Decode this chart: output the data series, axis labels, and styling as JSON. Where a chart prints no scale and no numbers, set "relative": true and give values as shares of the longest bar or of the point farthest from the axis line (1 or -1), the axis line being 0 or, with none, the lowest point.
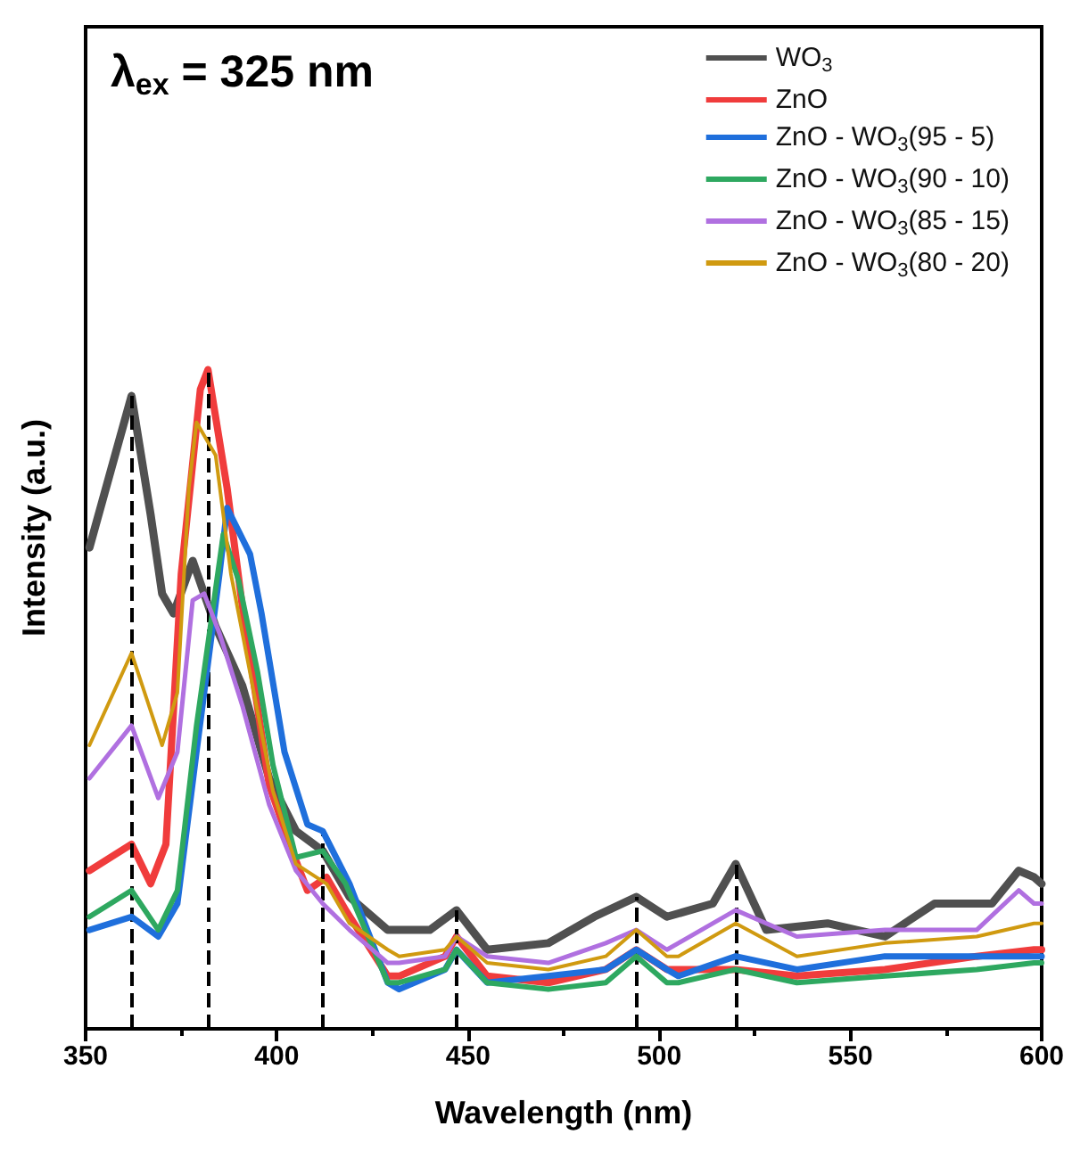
{
  "chart_data": {
    "type": "line",
    "relative": true,
    "xlabel": "Wavelength (nm)",
    "ylabel": "Intensity (a.u.)",
    "annotations": [
      "λ$_{ex}$ = 325 nm"
    ],
    "xlim": [
      350,
      600
    ],
    "xticks": [
      350,
      400,
      450,
      500,
      550,
      600
    ],
    "grid": false,
    "legend": "top right",
    "marker": "none",
    "line_style": "solid",
    "ref_lines": [
      {
        "axis": "x",
        "value": 362,
        "color": "#000000",
        "line_style": "dashed"
      },
      {
        "axis": "x",
        "value": 382,
        "color": "#000000",
        "line_style": "dashed"
      },
      {
        "axis": "x",
        "value": 412,
        "color": "#000000",
        "line_style": "dashed"
      },
      {
        "axis": "x",
        "value": 447,
        "color": "#000000",
        "line_style": "dashed"
      },
      {
        "axis": "x",
        "value": 494,
        "color": "#000000",
        "line_style": "dashed"
      },
      {
        "axis": "x",
        "value": 520,
        "color": "#000000",
        "line_style": "dashed"
      }
    ],
    "series": [
      {
        "name": "WO$_{3}$",
        "color": "#505050",
        "x": [
          351,
          362,
          367,
          370,
          373,
          378,
          384,
          391,
          398,
          405,
          412,
          419,
          429,
          440,
          447,
          455,
          471,
          483,
          494,
          502,
          514,
          520,
          528,
          544,
          559,
          572,
          587,
          594,
          598,
          600
        ],
        "values": [
          0.73,
          0.96,
          0.78,
          0.66,
          0.63,
          0.71,
          0.61,
          0.52,
          0.38,
          0.3,
          0.27,
          0.2,
          0.15,
          0.15,
          0.18,
          0.12,
          0.13,
          0.17,
          0.2,
          0.17,
          0.19,
          0.25,
          0.15,
          0.16,
          0.14,
          0.19,
          0.19,
          0.24,
          0.23,
          0.22
        ]
      },
      {
        "name": "ZnO",
        "color": "#f03c3c",
        "x": [
          351,
          362,
          367,
          371,
          375,
          380,
          382,
          387,
          391,
          398,
          404,
          408,
          413,
          418,
          429,
          432,
          444,
          447,
          455,
          471,
          486,
          494,
          502,
          505,
          520,
          536,
          559,
          583,
          598,
          600
        ],
        "values": [
          0.24,
          0.28,
          0.22,
          0.28,
          0.69,
          0.97,
          1,
          0.82,
          0.64,
          0.37,
          0.27,
          0.21,
          0.23,
          0.18,
          0.08,
          0.08,
          0.11,
          0.14,
          0.08,
          0.07,
          0.09,
          0.12,
          0.09,
          0.09,
          0.09,
          0.08,
          0.09,
          0.11,
          0.12,
          0.12
        ]
      },
      {
        "name": "ZnO - WO$_{3}$(95 - 5)",
        "color": "#1f6fdc",
        "x": [
          351,
          362,
          369,
          374,
          379,
          385,
          387,
          393,
          396,
          402,
          408,
          412,
          419,
          429,
          432,
          444,
          447,
          455,
          471,
          486,
          494,
          502,
          505,
          520,
          536,
          559,
          583,
          598,
          600
        ],
        "values": [
          0.15,
          0.17,
          0.14,
          0.19,
          0.42,
          0.69,
          0.79,
          0.72,
          0.63,
          0.42,
          0.31,
          0.3,
          0.22,
          0.07,
          0.06,
          0.09,
          0.12,
          0.07,
          0.08,
          0.09,
          0.12,
          0.09,
          0.08,
          0.11,
          0.09,
          0.11,
          0.11,
          0.11,
          0.11
        ]
      },
      {
        "name": "ZnO - WO$_{3}$(90 - 10)",
        "color": "#2ea860",
        "x": [
          351,
          362,
          369,
          374,
          379,
          386,
          390,
          395,
          399,
          405,
          412,
          418,
          429,
          432,
          444,
          447,
          455,
          471,
          486,
          494,
          502,
          505,
          520,
          536,
          559,
          583,
          598,
          600
        ],
        "values": [
          0.17,
          0.21,
          0.15,
          0.21,
          0.46,
          0.75,
          0.68,
          0.54,
          0.4,
          0.26,
          0.27,
          0.22,
          0.07,
          0.07,
          0.09,
          0.12,
          0.07,
          0.06,
          0.07,
          0.11,
          0.07,
          0.07,
          0.09,
          0.07,
          0.08,
          0.09,
          0.1,
          0.1
        ]
      },
      {
        "name": "ZnO - WO$_{3}$(85 - 15)",
        "color": "#b070e0",
        "x": [
          351,
          362,
          369,
          374,
          378,
          381,
          385,
          391,
          398,
          405,
          412,
          419,
          429,
          432,
          444,
          447,
          455,
          471,
          486,
          494,
          502,
          505,
          520,
          536,
          559,
          583,
          594,
          598,
          600
        ],
        "values": [
          0.38,
          0.46,
          0.35,
          0.42,
          0.65,
          0.66,
          0.6,
          0.49,
          0.34,
          0.24,
          0.19,
          0.15,
          0.1,
          0.1,
          0.11,
          0.14,
          0.11,
          0.1,
          0.13,
          0.15,
          0.12,
          0.13,
          0.18,
          0.14,
          0.15,
          0.15,
          0.21,
          0.19,
          0.19
        ]
      },
      {
        "name": "ZnO - WO$_{3}$(80 - 20)",
        "color": "#d09a10",
        "x": [
          351,
          362,
          370,
          374,
          377,
          379,
          384,
          388,
          393,
          399,
          405,
          413,
          419,
          429,
          432,
          444,
          447,
          455,
          471,
          486,
          494,
          502,
          505,
          520,
          536,
          559,
          583,
          598,
          600
        ],
        "values": [
          0.43,
          0.57,
          0.43,
          0.51,
          0.82,
          0.92,
          0.87,
          0.69,
          0.54,
          0.36,
          0.25,
          0.22,
          0.16,
          0.12,
          0.11,
          0.12,
          0.14,
          0.1,
          0.09,
          0.11,
          0.15,
          0.11,
          0.11,
          0.16,
          0.11,
          0.13,
          0.14,
          0.16,
          0.16
        ]
      }
    ]
  }
}
